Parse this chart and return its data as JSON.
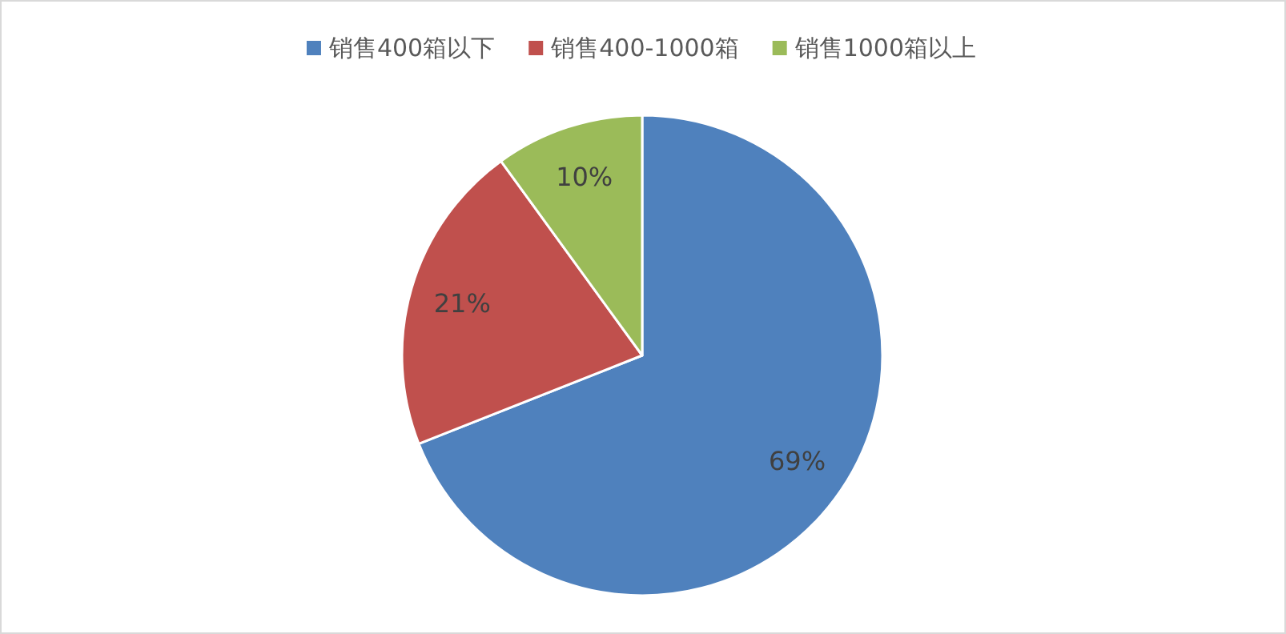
{
  "chart_data": {
    "type": "pie",
    "categories": [
      "销售400箱以下",
      "销售400-1000箱",
      "销售1000箱以上"
    ],
    "values": [
      69,
      21,
      10
    ],
    "colors": [
      "#4f81bd",
      "#c0504d",
      "#9bbb59"
    ],
    "value_labels": [
      "69%",
      "21%",
      "10%"
    ],
    "legend": "top"
  }
}
